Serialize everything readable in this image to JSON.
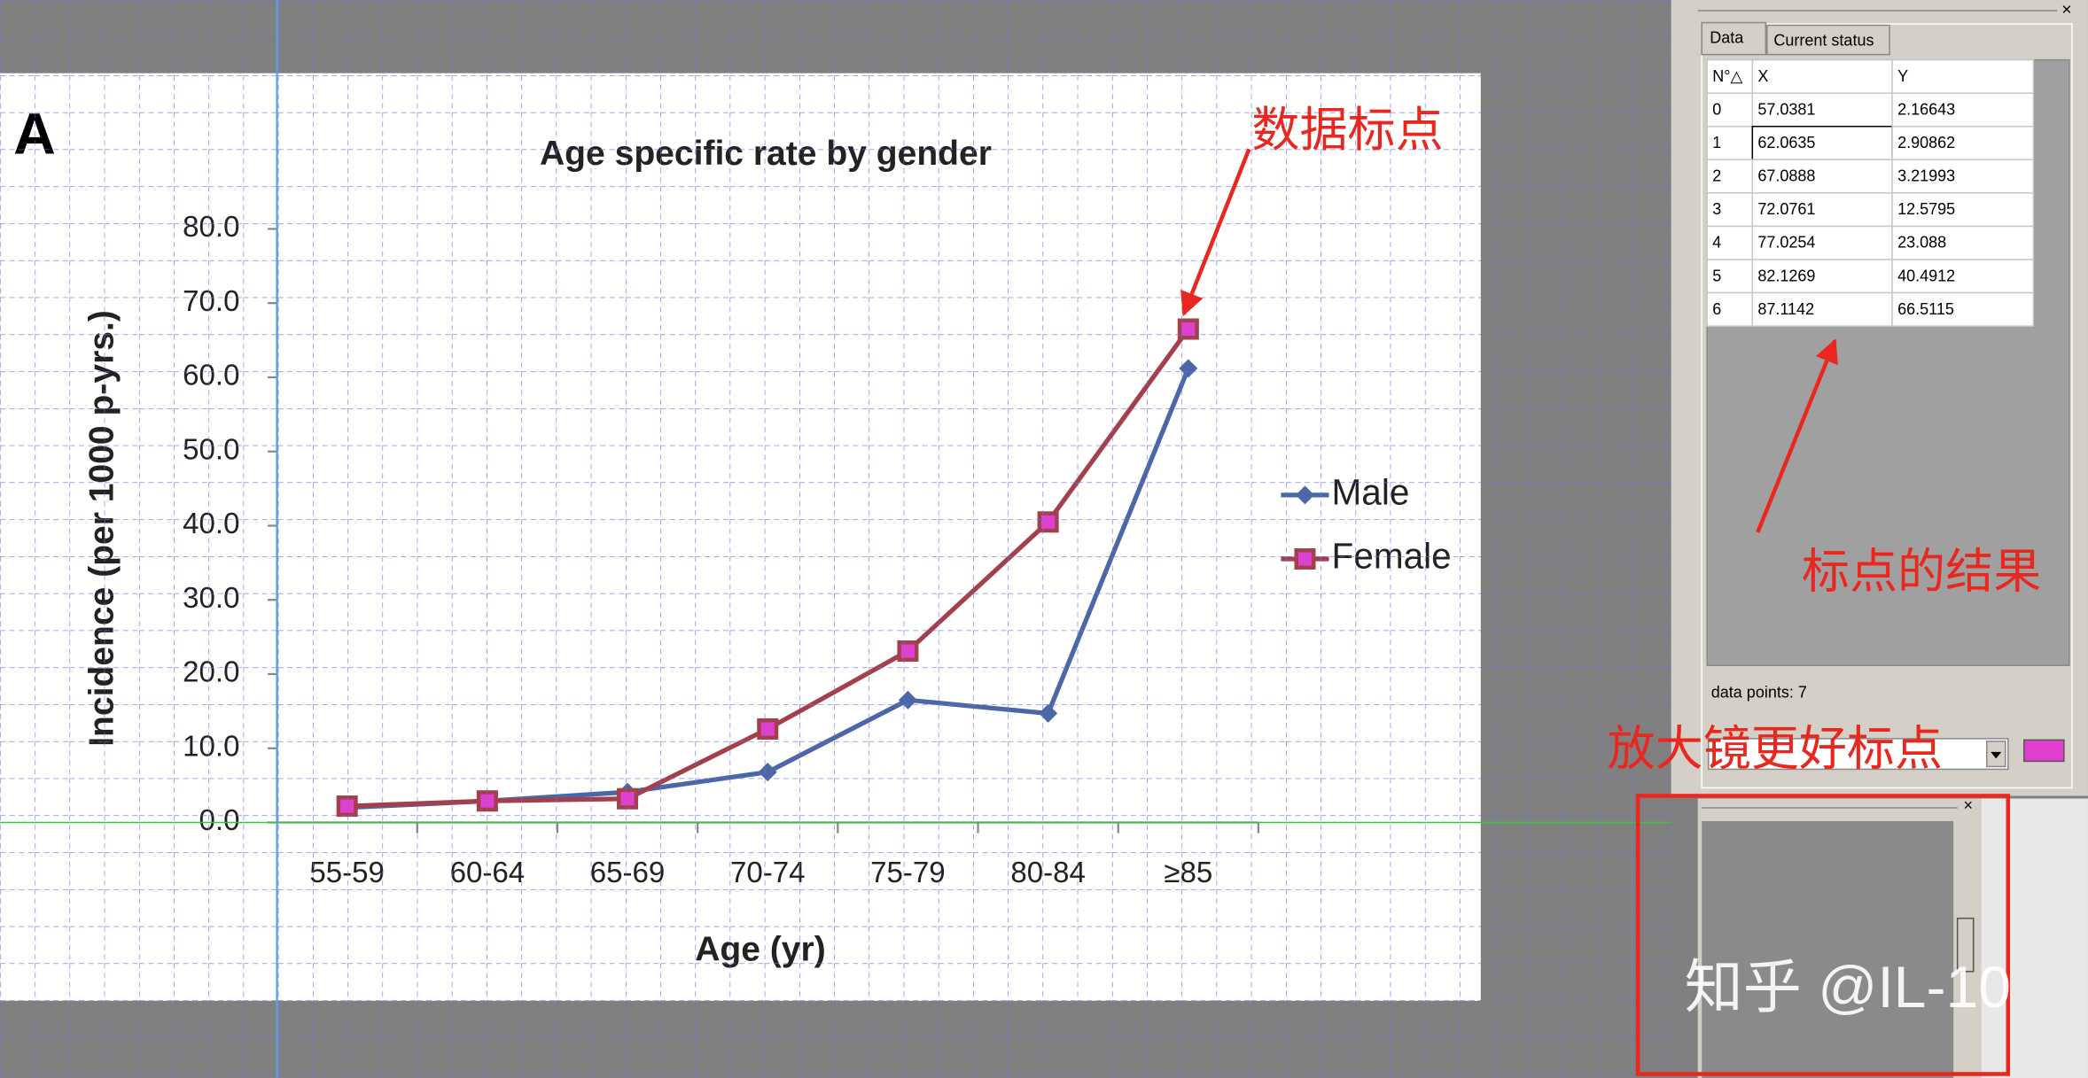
{
  "chart_data": {
    "type": "line",
    "panel_label": "A",
    "title": "Age specific rate by gender",
    "x_label": "Age (yr)",
    "y_label": "Incidence (per 1000 p-yrs.)",
    "categories": [
      "55-59",
      "60-64",
      "65-69",
      "70-74",
      "75-79",
      "80-84",
      "≥85"
    ],
    "series": [
      {
        "name": "Male",
        "color": "#4a67a8",
        "marker": "diamond",
        "values": [
          2.0,
          2.9,
          4.1,
          6.8,
          16.5,
          14.7,
          61.2
        ]
      },
      {
        "name": "Female",
        "color": "#a3404c",
        "marker": "square",
        "values": [
          2.2,
          2.9,
          3.2,
          12.6,
          23.1,
          40.5,
          66.5
        ]
      }
    ],
    "ylim": [
      0,
      80
    ],
    "yticks": [
      {
        "value": 0,
        "label": "0.0"
      },
      {
        "value": 10,
        "label": "10.0"
      },
      {
        "value": 20,
        "label": "20.0"
      },
      {
        "value": 30,
        "label": "30.0"
      },
      {
        "value": 40,
        "label": "40.0"
      },
      {
        "value": 50,
        "label": "50.0"
      },
      {
        "value": 60,
        "label": "60.0"
      },
      {
        "value": 70,
        "label": "70.0"
      },
      {
        "value": 80,
        "label": "80.0"
      }
    ],
    "legend": "right"
  },
  "panel": {
    "tabs": [
      "Data",
      "Current status"
    ],
    "table": {
      "columns": [
        "N°△",
        "X",
        "Y"
      ],
      "rows": [
        [
          0,
          57.0381,
          2.16643
        ],
        [
          1,
          62.0635,
          2.90862
        ],
        [
          2,
          67.0888,
          3.21993
        ],
        [
          3,
          72.0761,
          12.5795
        ],
        [
          4,
          77.0254,
          23.088
        ],
        [
          5,
          82.1269,
          40.4912
        ],
        [
          6,
          87.1142,
          66.5115
        ]
      ]
    },
    "status": "data points: 7"
  },
  "annotations": [
    "数据标点",
    "标点的结果",
    "放大镜更好标点"
  ],
  "watermark": "知乎 @IL-10"
}
